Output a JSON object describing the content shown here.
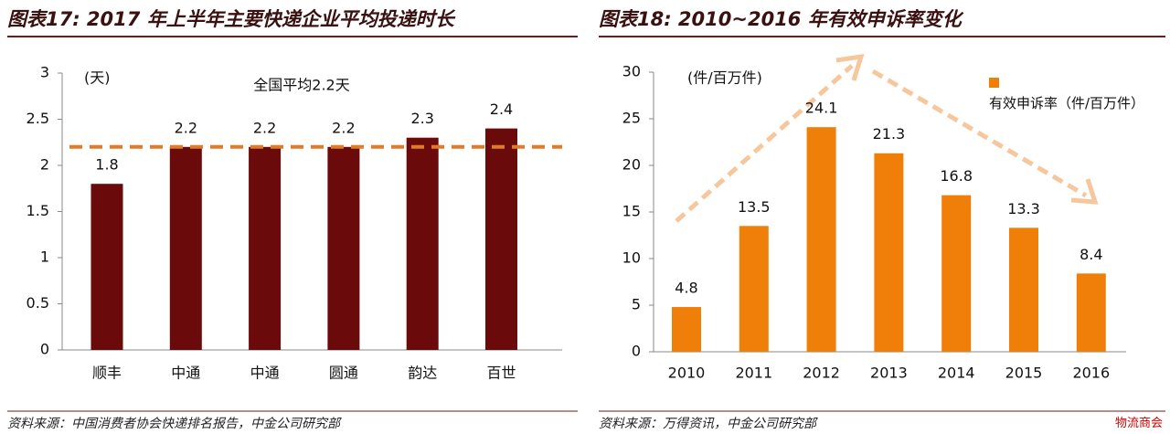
{
  "chart_data": [
    {
      "type": "bar",
      "title": "图表17: 2017 年上半年主要快递企业平均投递时长",
      "unit_label": "(天)",
      "annotation": "全国平均2.2天",
      "categories": [
        "顺丰",
        "中通",
        "中通",
        "圆通",
        "韵达",
        "百世"
      ],
      "values": [
        1.8,
        2.2,
        2.2,
        2.2,
        2.3,
        2.4
      ],
      "color": "#6b0a0a",
      "ylim": [
        0,
        3
      ],
      "yticks": [
        0,
        0.5,
        1,
        1.5,
        2,
        2.5,
        3
      ],
      "reference_line": 2.2,
      "reference_color": "#e07b2a",
      "source": "资料来源：中国消费者协会快递排名报告，中金公司研究部"
    },
    {
      "type": "bar",
      "title": "图表18: 2010~2016 年有效申诉率变化",
      "unit_label": "(件/百万件)",
      "categories": [
        "2010",
        "2011",
        "2012",
        "2013",
        "2014",
        "2015",
        "2016"
      ],
      "series": [
        {
          "name": "有效申诉率（件/百万件）",
          "color": "#f07f09",
          "values": [
            4.8,
            13.5,
            24.1,
            21.3,
            16.8,
            13.3,
            8.4
          ]
        }
      ],
      "ylim": [
        0,
        30
      ],
      "yticks": [
        0,
        5,
        10,
        15,
        20,
        25,
        30
      ],
      "legend": "upper right",
      "source": "资料来源：万得资讯，中金公司研究部"
    }
  ],
  "watermark": "物流商会"
}
